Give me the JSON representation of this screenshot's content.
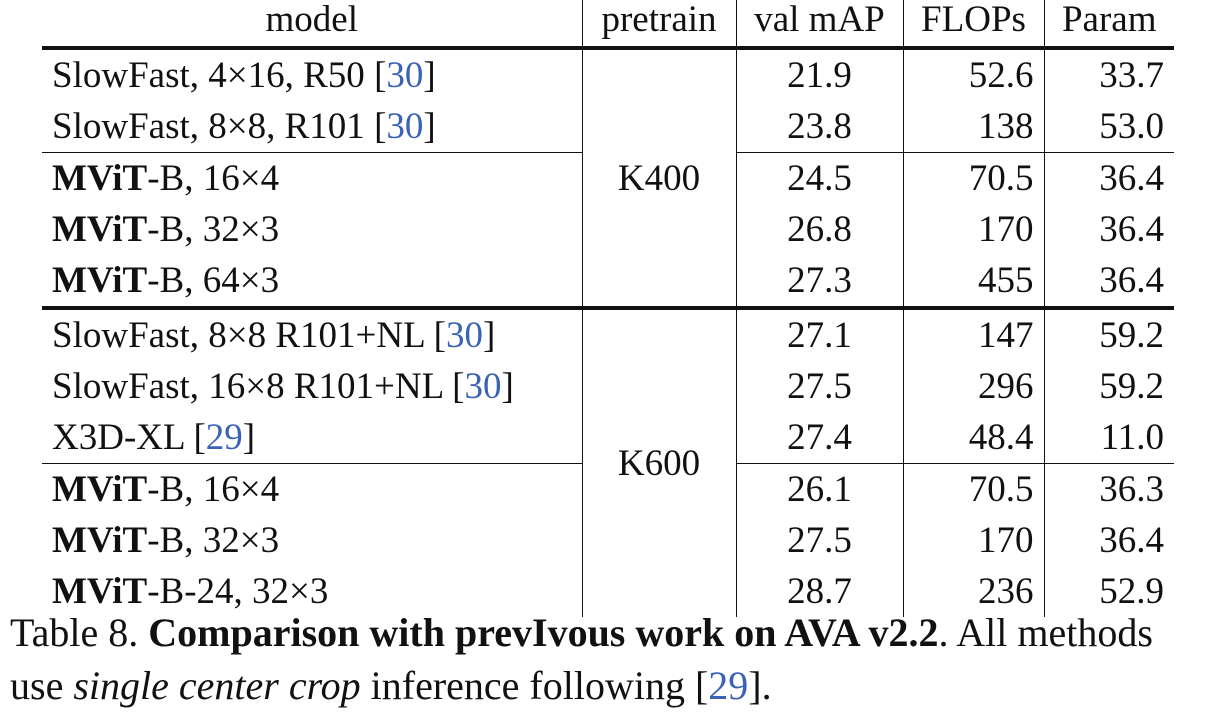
{
  "table": {
    "headers": [
      "model",
      "pretrain",
      "val mAP",
      "FLOPs",
      "Param"
    ],
    "pretrain_k400": "K400",
    "pretrain_k600": "K600",
    "rows": [
      {
        "bold": "",
        "model": "SlowFast, 4×16, R50 ",
        "cite": "30",
        "val_map": "21.9",
        "map_bold": false,
        "flops": "52.6",
        "param": "33.7"
      },
      {
        "bold": "",
        "model": "SlowFast, 8×8, R101 ",
        "cite": "30",
        "val_map": "23.8",
        "map_bold": false,
        "flops": "138",
        "param": "53.0"
      },
      {
        "bold": "MViT",
        "model": "-B, 16×4",
        "cite": "",
        "val_map": "24.5",
        "map_bold": false,
        "flops": "70.5",
        "param": "36.4"
      },
      {
        "bold": "MViT",
        "model": "-B, 32×3",
        "cite": "",
        "val_map": "26.8",
        "map_bold": false,
        "flops": "170",
        "param": "36.4"
      },
      {
        "bold": "MViT",
        "model": "-B, 64×3",
        "cite": "",
        "val_map": "27.3",
        "map_bold": true,
        "flops": "455",
        "param": "36.4"
      },
      {
        "bold": "",
        "model": "SlowFast, 8×8 R101+NL ",
        "cite": "30",
        "val_map": "27.1",
        "map_bold": false,
        "flops": "147",
        "param": "59.2"
      },
      {
        "bold": "",
        "model": "SlowFast, 16×8 R101+NL ",
        "cite": "30",
        "val_map": "27.5",
        "map_bold": false,
        "flops": "296",
        "param": "59.2"
      },
      {
        "bold": "",
        "model": "X3D-XL ",
        "cite": "29",
        "val_map": "27.4",
        "map_bold": false,
        "flops": "48.4",
        "param": "11.0"
      },
      {
        "bold": "MViT",
        "model": "-B, 16×4",
        "cite": "",
        "val_map": "26.1",
        "map_bold": false,
        "flops": "70.5",
        "param": "36.3"
      },
      {
        "bold": "MViT",
        "model": "-B, 32×3",
        "cite": "",
        "val_map": "27.5",
        "map_bold": false,
        "flops": "170",
        "param": "36.4"
      },
      {
        "bold": "MViT",
        "model": "-B-24, 32×3",
        "cite": "",
        "val_map": "28.7",
        "map_bold": true,
        "flops": "236",
        "param": "52.9"
      }
    ]
  },
  "caption": {
    "label": "Table 8. ",
    "title": "Comparison with prevIvous work on AVA v2.2",
    "after_title": ".  All methods use ",
    "emphasis": "single center crop",
    "after_emphasis": " inference following [",
    "cite": "29",
    "end": "]."
  }
}
